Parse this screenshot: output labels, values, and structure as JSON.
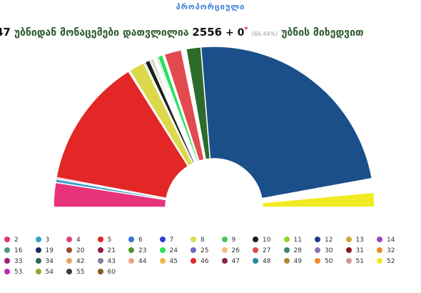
{
  "header": {
    "title": "პროპორციული",
    "count_left": "47",
    "text_a": "უბნიდან მონაცემები დათვლილია",
    "count_counted": "2556",
    "plus": "+ 0",
    "star": "*",
    "percent": "(66.44%)",
    "text_b": "უბნის მიხედვით"
  },
  "chart_data": {
    "type": "pie",
    "variant": "semicircle-donut",
    "parties": [
      {
        "id": "2",
        "color": "#e8337a",
        "share": 5.0
      },
      {
        "id": "3",
        "color": "#33a1c9",
        "share": 0.7
      },
      {
        "id": "4",
        "color": "#e0407a",
        "share": 0.3
      },
      {
        "id": "5",
        "color": "#e32726",
        "share": 26.5
      },
      {
        "id": "6",
        "color": "#3c6fd1",
        "share": 0.2
      },
      {
        "id": "7",
        "color": "#2d3fcf",
        "share": 0.1
      },
      {
        "id": "8",
        "color": "#dcd84c",
        "share": 3.2
      },
      {
        "id": "9",
        "color": "#4cc35c",
        "share": 0.3
      },
      {
        "id": "10",
        "color": "#1d1d1d",
        "share": 1.0
      },
      {
        "id": "11",
        "color": "#8fd52c",
        "share": 0.3
      },
      {
        "id": "12",
        "color": "#213a8f",
        "share": 0.3
      },
      {
        "id": "13",
        "color": "#d2a44a",
        "share": 0.3
      },
      {
        "id": "14",
        "color": "#9a44c4",
        "share": 0.3
      },
      {
        "id": "16",
        "color": "#4c9a86",
        "share": 0.3
      },
      {
        "id": "19",
        "color": "#1a2b63",
        "share": 0.2
      },
      {
        "id": "20",
        "color": "#a24a2a",
        "share": 0.2
      },
      {
        "id": "21",
        "color": "#9a1b45",
        "share": 0.2
      },
      {
        "id": "23",
        "color": "#4c9a2a",
        "share": 0.3
      },
      {
        "id": "24",
        "color": "#22e25a",
        "share": 1.0
      },
      {
        "id": "25",
        "color": "#6a6fc2",
        "share": 0.2
      },
      {
        "id": "26",
        "color": "#f0c07a",
        "share": 0.2
      },
      {
        "id": "27",
        "color": "#e14a4f",
        "share": 3.5
      },
      {
        "id": "28",
        "color": "#3a8a6a",
        "share": 0.2
      },
      {
        "id": "30",
        "color": "#8a72b2",
        "share": 0.2
      },
      {
        "id": "31",
        "color": "#8a1a1a",
        "share": 0.2
      },
      {
        "id": "32",
        "color": "#e8882a",
        "share": 0.2
      },
      {
        "id": "33",
        "color": "#a0227a",
        "share": 0.2
      },
      {
        "id": "34",
        "color": "#2f6a4a",
        "share": 0.2
      },
      {
        "id": "42",
        "color": "#f0a35a",
        "share": 0.2
      },
      {
        "id": "43",
        "color": "#8a7aa6",
        "share": 0.2
      },
      {
        "id": "44",
        "color": "#f0a090",
        "share": 0.2
      },
      {
        "id": "45",
        "color": "#f0b44a",
        "share": 0.2
      },
      {
        "id": "46",
        "color": "#e02a2a",
        "share": 0.2
      },
      {
        "id": "47",
        "color": "#8a2a3a",
        "share": 0.2
      },
      {
        "id": "48",
        "color": "#2a8aa2",
        "share": 0.2
      },
      {
        "id": "49",
        "color": "#b08a3a",
        "share": 0.2
      },
      {
        "id": "50",
        "color": "#f08a2a",
        "share": 0.2
      },
      {
        "id": "51",
        "color": "#c89a9a",
        "share": 0.2
      },
      {
        "id": "52",
        "color": "#f2ea22",
        "share": 3.0
      },
      {
        "id": "53",
        "color": "#c02ab2",
        "share": 0.2
      },
      {
        "id": "54",
        "color": "#9aa22a",
        "share": 0.2
      },
      {
        "id": "55",
        "color": "#3a3a3a",
        "share": 0.2
      },
      {
        "id": "60",
        "color": "#8a5a1a",
        "share": 0.2
      },
      {
        "id": "41",
        "color": "#1a4f8a",
        "share": 47.5
      },
      {
        "id": "36",
        "color": "#2d6b2a",
        "share": 3.0
      }
    ],
    "slice_order": [
      "2",
      "3",
      "4",
      "5",
      "6",
      "7",
      "8",
      "9",
      "10",
      "11",
      "12",
      "13",
      "19",
      "20",
      "21",
      "23",
      "24",
      "25",
      "26",
      "27",
      "28",
      "30",
      "31",
      "32",
      "33",
      "36",
      "41",
      "42",
      "43",
      "44",
      "45",
      "46",
      "47",
      "48",
      "49",
      "50",
      "51",
      "53",
      "54",
      "55",
      "60",
      "52"
    ],
    "legend_order": [
      "2",
      "3",
      "4",
      "5",
      "6",
      "7",
      "8",
      "9",
      "10",
      "11",
      "12",
      "13",
      "14",
      "16",
      "19",
      "20",
      "21",
      "23",
      "24",
      "25",
      "26",
      "27",
      "28",
      "30",
      "31",
      "32",
      "33",
      "34",
      "42",
      "43",
      "44",
      "45",
      "46",
      "47",
      "48",
      "49",
      "50",
      "51",
      "52",
      "53",
      "54",
      "55",
      "60"
    ]
  }
}
